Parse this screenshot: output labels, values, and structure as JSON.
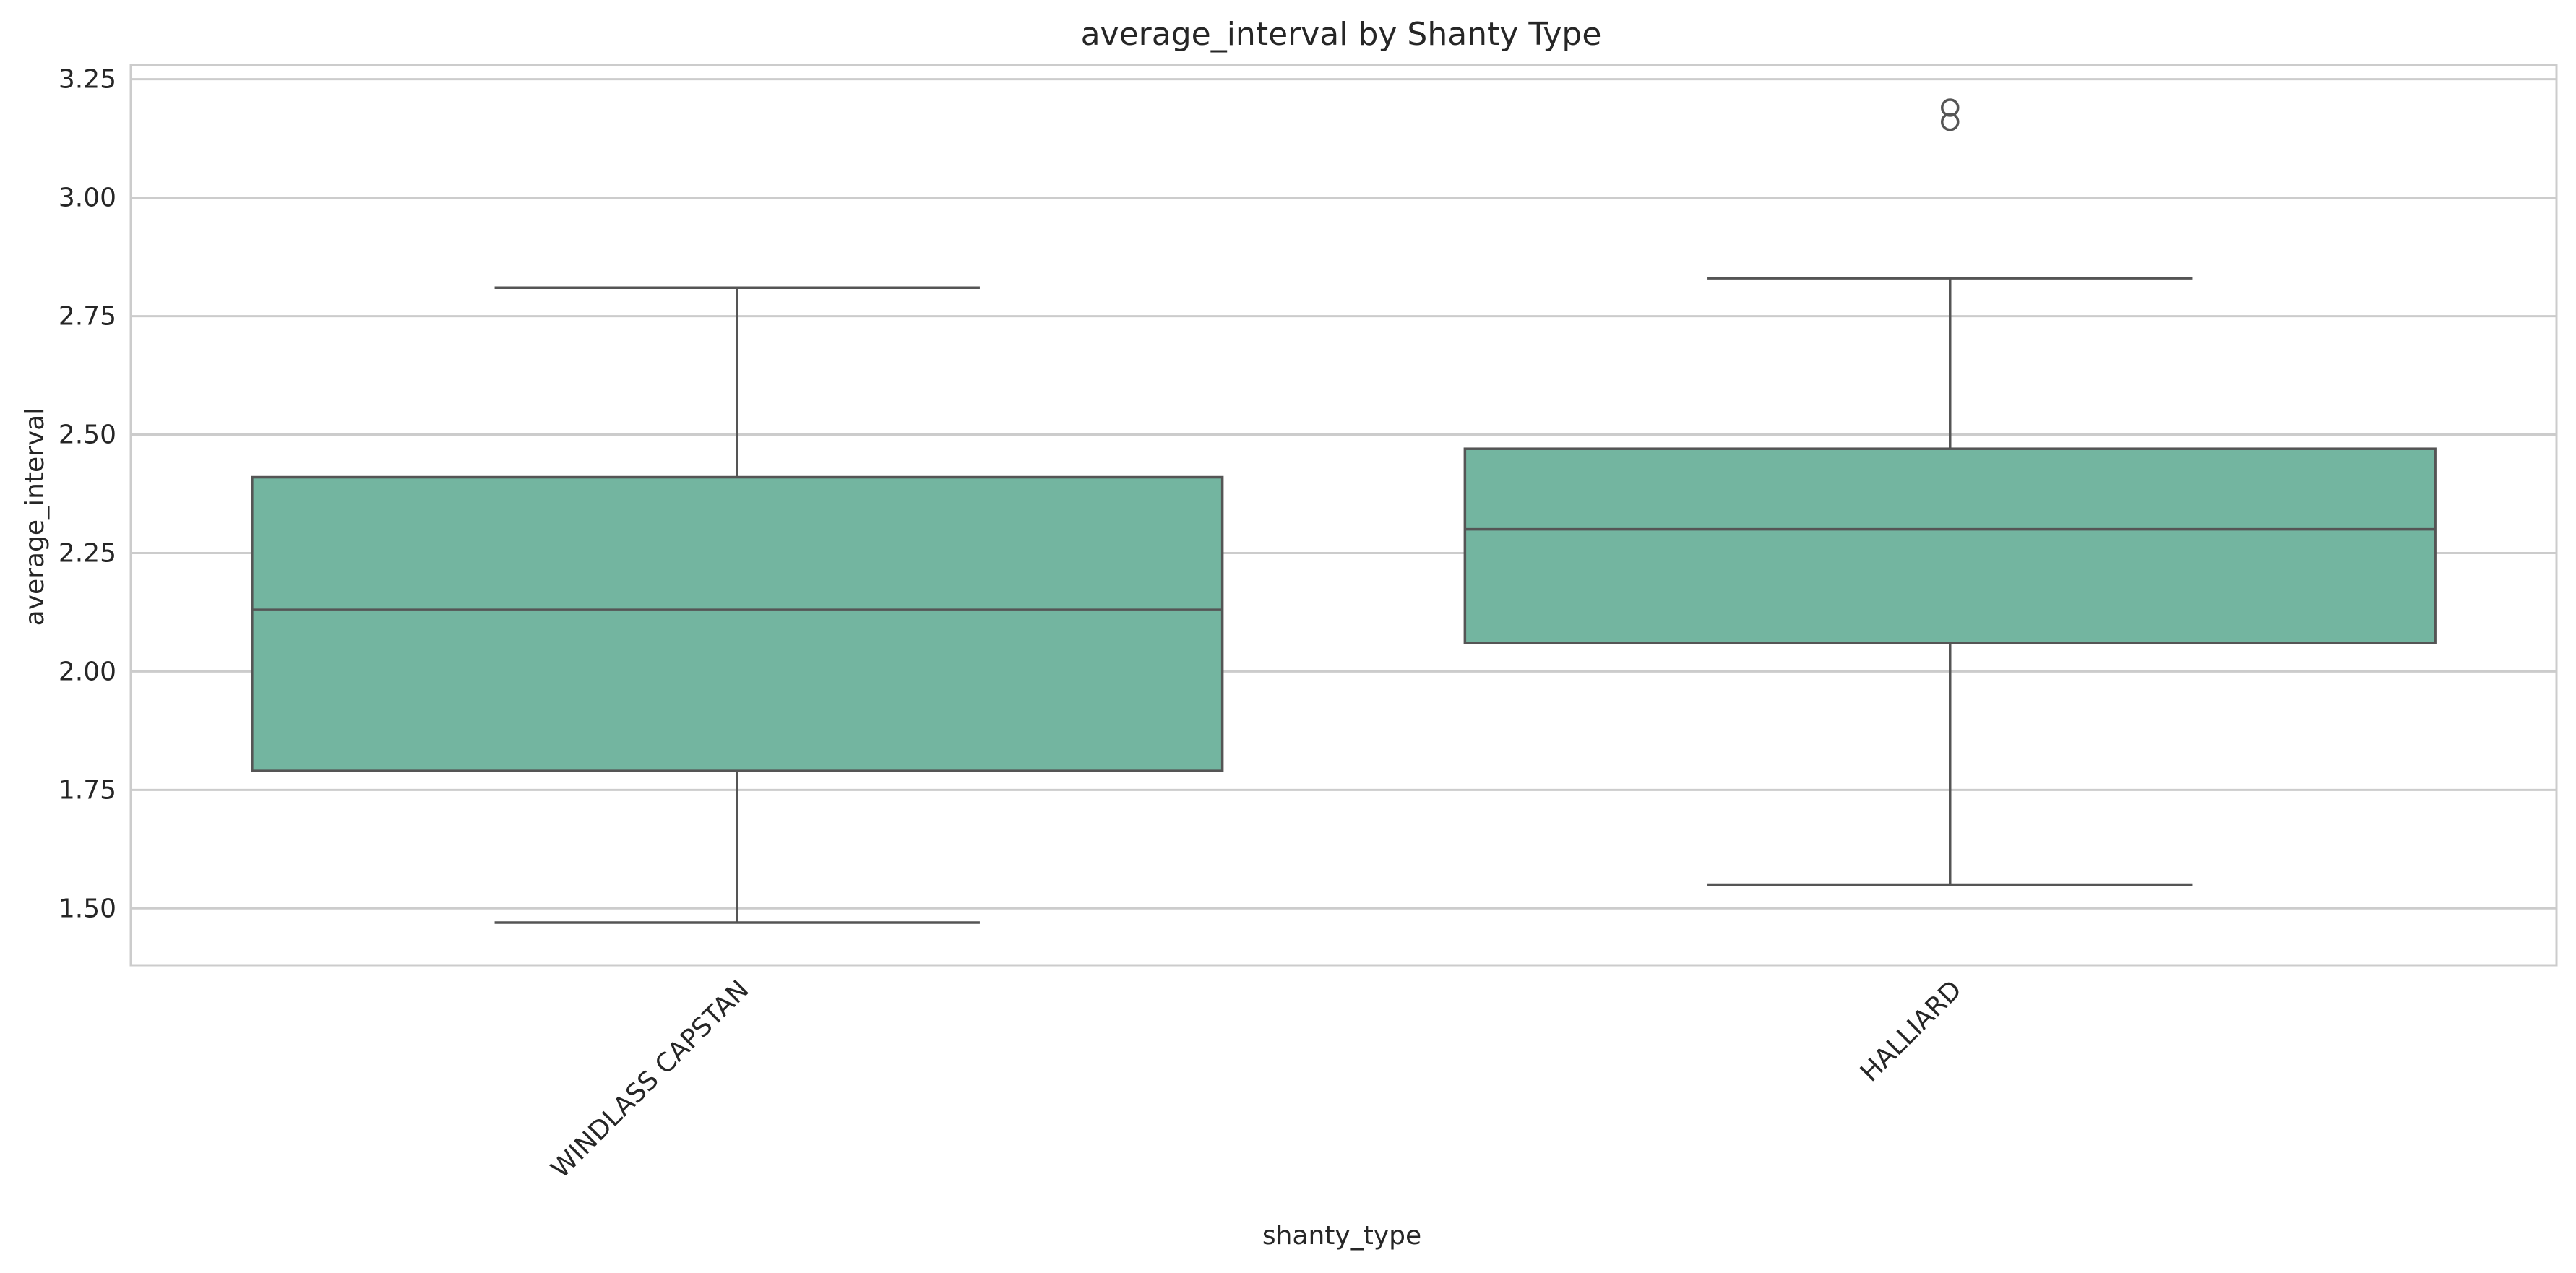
{
  "chart_data": {
    "type": "box",
    "title": "average_interval by Shanty Type",
    "xlabel": "shanty_type",
    "ylabel": "average_interval",
    "ylim": [
      1.38,
      3.28
    ],
    "yticks": [
      "1.50",
      "1.75",
      "2.00",
      "2.25",
      "2.50",
      "2.75",
      "3.00",
      "3.25"
    ],
    "grid": true,
    "box_color": "#73b5a0",
    "line_color": "#555555",
    "grid_color": "#cccccc",
    "frame_color": "#cccccc",
    "categories": [
      "WINDLASS CAPSTAN",
      "HALLIARD"
    ],
    "boxes": [
      {
        "category": "WINDLASS CAPSTAN",
        "whisker_low": 1.47,
        "q1": 1.79,
        "median": 2.13,
        "q3": 2.41,
        "whisker_high": 2.81,
        "outliers": []
      },
      {
        "category": "HALLIARD",
        "whisker_low": 1.55,
        "q1": 2.06,
        "median": 2.3,
        "q3": 2.47,
        "whisker_high": 2.83,
        "outliers": [
          3.16,
          3.19
        ]
      }
    ]
  }
}
